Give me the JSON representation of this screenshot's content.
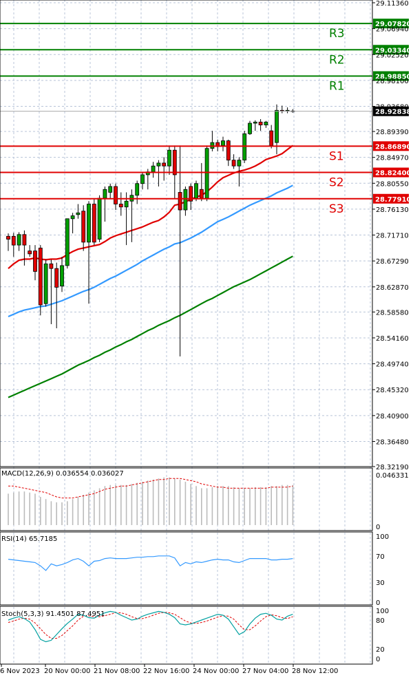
{
  "chart_data": {
    "type": "candlestick",
    "price_axis": {
      "ticks": [
        "29.11360",
        "29.06940",
        "29.02520",
        "28.98100",
        "28.93680",
        "28.89390",
        "28.84970",
        "28.80550",
        "28.76130",
        "28.71710",
        "28.67290",
        "28.62870",
        "28.58580",
        "28.54160",
        "28.49740",
        "28.45320",
        "28.40900",
        "28.36480",
        "28.32190"
      ],
      "ylim": [
        28.3219,
        29.1136
      ]
    },
    "time_axis": {
      "ticks": [
        "6 Nov 2023",
        "20 Nov 00:00",
        "21 Nov 08:00",
        "22 Nov 16:00",
        "24 Nov 00:00",
        "27 Nov 04:00",
        "28 Nov 12:00"
      ]
    },
    "levels": [
      {
        "name": "R3",
        "value": "29.07820",
        "color": "#008000"
      },
      {
        "name": "R2",
        "value": "29.03340",
        "color": "#008000"
      },
      {
        "name": "R1",
        "value": "28.98850",
        "color": "#008000"
      },
      {
        "name": "S1",
        "value": "28.86890",
        "color": "#e00000"
      },
      {
        "name": "S2",
        "value": "28.82400",
        "color": "#e00000"
      },
      {
        "name": "S3",
        "value": "28.77910",
        "color": "#e00000"
      }
    ],
    "current_price": {
      "value": "28.92838",
      "color": "#000000"
    },
    "colors": {
      "bull": "#00a000",
      "bear": "#e00000",
      "ma_fast": "#e00000",
      "ma_mid": "#3399ff",
      "ma_slow": "#008000"
    },
    "candles": [
      {
        "o": 28.715,
        "h": 28.72,
        "l": 28.69,
        "c": 28.71
      },
      {
        "o": 28.715,
        "h": 28.721,
        "l": 28.68,
        "c": 28.7
      },
      {
        "o": 28.7,
        "h": 28.722,
        "l": 28.69,
        "c": 28.718
      },
      {
        "o": 28.718,
        "h": 28.725,
        "l": 28.665,
        "c": 28.7
      },
      {
        "o": 28.69,
        "h": 28.7,
        "l": 28.68,
        "c": 28.685
      },
      {
        "o": 28.69,
        "h": 28.7,
        "l": 28.64,
        "c": 28.655
      },
      {
        "o": 28.695,
        "h": 28.7,
        "l": 28.58,
        "c": 28.598
      },
      {
        "o": 28.6,
        "h": 28.675,
        "l": 28.595,
        "c": 28.668
      },
      {
        "o": 28.668,
        "h": 28.675,
        "l": 28.565,
        "c": 28.66
      },
      {
        "o": 28.66,
        "h": 28.67,
        "l": 28.558,
        "c": 28.628
      },
      {
        "o": 28.63,
        "h": 28.68,
        "l": 28.62,
        "c": 28.665
      },
      {
        "o": 28.665,
        "h": 28.745,
        "l": 28.66,
        "c": 28.745
      },
      {
        "o": 28.745,
        "h": 28.755,
        "l": 28.72,
        "c": 28.75
      },
      {
        "o": 28.752,
        "h": 28.77,
        "l": 28.745,
        "c": 28.755
      },
      {
        "o": 28.758,
        "h": 28.768,
        "l": 28.69,
        "c": 28.705
      },
      {
        "o": 28.705,
        "h": 28.775,
        "l": 28.6,
        "c": 28.77
      },
      {
        "o": 28.77,
        "h": 28.78,
        "l": 28.7,
        "c": 28.705
      },
      {
        "o": 28.71,
        "h": 28.785,
        "l": 28.705,
        "c": 28.78
      },
      {
        "o": 28.78,
        "h": 28.8,
        "l": 28.74,
        "c": 28.795
      },
      {
        "o": 28.79,
        "h": 28.805,
        "l": 28.78,
        "c": 28.8
      },
      {
        "o": 28.8,
        "h": 28.805,
        "l": 28.76,
        "c": 28.77
      },
      {
        "o": 28.77,
        "h": 28.79,
        "l": 28.75,
        "c": 28.765
      },
      {
        "o": 28.765,
        "h": 28.79,
        "l": 28.7,
        "c": 28.775
      },
      {
        "o": 28.775,
        "h": 28.795,
        "l": 28.705,
        "c": 28.785
      },
      {
        "o": 28.785,
        "h": 28.81,
        "l": 28.77,
        "c": 28.805
      },
      {
        "o": 28.805,
        "h": 28.825,
        "l": 28.795,
        "c": 28.82
      },
      {
        "o": 28.82,
        "h": 28.83,
        "l": 28.795,
        "c": 28.825
      },
      {
        "o": 28.825,
        "h": 28.842,
        "l": 28.815,
        "c": 28.835
      },
      {
        "o": 28.835,
        "h": 28.845,
        "l": 28.8,
        "c": 28.84
      },
      {
        "o": 28.84,
        "h": 28.85,
        "l": 28.81,
        "c": 28.835
      },
      {
        "o": 28.835,
        "h": 28.87,
        "l": 28.82,
        "c": 28.862
      },
      {
        "o": 28.862,
        "h": 28.87,
        "l": 28.78,
        "c": 28.82
      },
      {
        "o": 28.79,
        "h": 28.87,
        "l": 28.51,
        "c": 28.76
      },
      {
        "o": 28.76,
        "h": 28.8,
        "l": 28.75,
        "c": 28.795
      },
      {
        "o": 28.8,
        "h": 28.805,
        "l": 28.76,
        "c": 28.775
      },
      {
        "o": 28.78,
        "h": 28.81,
        "l": 28.775,
        "c": 28.805
      },
      {
        "o": 28.795,
        "h": 28.84,
        "l": 28.775,
        "c": 28.78
      },
      {
        "o": 28.78,
        "h": 28.87,
        "l": 28.775,
        "c": 28.865
      },
      {
        "o": 28.865,
        "h": 28.895,
        "l": 28.86,
        "c": 28.875
      },
      {
        "o": 28.875,
        "h": 28.88,
        "l": 28.86,
        "c": 28.868
      },
      {
        "o": 28.87,
        "h": 28.885,
        "l": 28.86,
        "c": 28.878
      },
      {
        "o": 28.878,
        "h": 28.88,
        "l": 28.835,
        "c": 28.845
      },
      {
        "o": 28.845,
        "h": 28.855,
        "l": 28.83,
        "c": 28.835
      },
      {
        "o": 28.835,
        "h": 28.85,
        "l": 28.8,
        "c": 28.845
      },
      {
        "o": 28.845,
        "h": 28.895,
        "l": 28.84,
        "c": 28.89
      },
      {
        "o": 28.89,
        "h": 28.912,
        "l": 28.888,
        "c": 28.908
      },
      {
        "o": 28.908,
        "h": 28.913,
        "l": 28.895,
        "c": 28.91
      },
      {
        "o": 28.91,
        "h": 28.915,
        "l": 28.895,
        "c": 28.905
      },
      {
        "o": 28.905,
        "h": 28.912,
        "l": 28.9,
        "c": 28.91
      },
      {
        "o": 28.895,
        "h": 28.905,
        "l": 28.865,
        "c": 28.87
      },
      {
        "o": 28.875,
        "h": 28.94,
        "l": 28.855,
        "c": 28.93
      },
      {
        "o": 28.93,
        "h": 28.938,
        "l": 28.925,
        "c": 28.929
      },
      {
        "o": 28.929,
        "h": 28.935,
        "l": 28.925,
        "c": 28.93
      },
      {
        "o": 28.929,
        "h": 28.932,
        "l": 28.926,
        "c": 28.928
      }
    ],
    "ma_fast": [
      28.66,
      28.668,
      28.674,
      28.676,
      28.676,
      28.678,
      28.676,
      28.675,
      28.676,
      28.676,
      28.678,
      28.684,
      28.689,
      28.693,
      28.695,
      28.697,
      28.699,
      28.701,
      28.706,
      28.712,
      28.716,
      28.719,
      28.722,
      28.725,
      28.728,
      28.731,
      28.735,
      28.739,
      28.742,
      28.748,
      28.756,
      28.768,
      28.77,
      28.774,
      28.778,
      28.782,
      28.785,
      28.791,
      28.799,
      28.808,
      28.815,
      28.819,
      28.823,
      28.826,
      28.828,
      28.831,
      28.835,
      28.84,
      28.846,
      28.849,
      28.852,
      28.856,
      28.863,
      28.87
    ],
    "ma_mid": [
      28.578,
      28.582,
      28.586,
      28.589,
      28.591,
      28.593,
      28.595,
      28.596,
      28.599,
      28.602,
      28.605,
      28.609,
      28.613,
      28.617,
      28.621,
      28.624,
      28.628,
      28.633,
      28.638,
      28.643,
      28.647,
      28.652,
      28.657,
      28.662,
      28.667,
      28.673,
      28.678,
      28.683,
      28.688,
      28.693,
      28.697,
      28.702,
      28.704,
      28.708,
      28.712,
      28.717,
      28.722,
      28.728,
      28.734,
      28.74,
      28.744,
      28.748,
      28.753,
      28.758,
      28.763,
      28.768,
      28.772,
      28.776,
      28.78,
      28.784,
      28.789,
      28.793,
      28.797,
      28.802
    ],
    "ma_slow": [
      28.44,
      28.444,
      28.448,
      28.452,
      28.456,
      28.46,
      28.464,
      28.468,
      28.472,
      28.476,
      28.48,
      28.485,
      28.49,
      28.495,
      28.499,
      28.503,
      28.508,
      28.512,
      28.517,
      28.521,
      28.526,
      28.53,
      28.535,
      28.539,
      28.544,
      28.549,
      28.554,
      28.558,
      28.563,
      28.567,
      28.571,
      28.576,
      28.58,
      28.585,
      28.59,
      28.595,
      28.6,
      28.605,
      28.609,
      28.614,
      28.619,
      28.624,
      28.629,
      28.633,
      28.637,
      28.641,
      28.646,
      28.651,
      28.656,
      28.661,
      28.666,
      28.671,
      28.676,
      28.681
    ],
    "macd": {
      "label": "MACD(12,26,9) 0.036554 0.036027",
      "ticks": [
        "0.046331",
        "0"
      ],
      "ylim": [
        0,
        0.046331
      ],
      "hist": [
        0.029,
        0.03,
        0.031,
        0.031,
        0.03,
        0.029,
        0.026,
        0.024,
        0.022,
        0.021,
        0.021,
        0.022,
        0.024,
        0.026,
        0.028,
        0.03,
        0.032,
        0.034,
        0.036,
        0.037,
        0.037,
        0.037,
        0.037,
        0.038,
        0.039,
        0.04,
        0.041,
        0.042,
        0.043,
        0.044,
        0.044,
        0.043,
        0.042,
        0.04,
        0.038,
        0.036,
        0.034,
        0.034,
        0.035,
        0.036,
        0.036,
        0.036,
        0.035,
        0.034,
        0.034,
        0.034,
        0.035,
        0.035,
        0.035,
        0.036,
        0.036,
        0.037,
        0.037,
        0.037
      ],
      "signal": [
        0.036,
        0.036,
        0.035,
        0.034,
        0.033,
        0.032,
        0.031,
        0.03,
        0.028,
        0.026,
        0.025,
        0.025,
        0.025,
        0.026,
        0.027,
        0.028,
        0.029,
        0.031,
        0.033,
        0.034,
        0.035,
        0.036,
        0.036,
        0.037,
        0.038,
        0.039,
        0.04,
        0.041,
        0.042,
        0.042,
        0.043,
        0.043,
        0.043,
        0.042,
        0.041,
        0.04,
        0.038,
        0.037,
        0.036,
        0.035,
        0.035,
        0.034,
        0.034,
        0.034,
        0.034,
        0.034,
        0.034,
        0.034,
        0.034,
        0.035,
        0.035,
        0.035,
        0.035,
        0.036
      ]
    },
    "rsi": {
      "label": "RSI(14) 65.7185",
      "ticks": [
        "100",
        "70",
        "30",
        "0"
      ],
      "ylim": [
        0,
        100
      ],
      "values": [
        65,
        64,
        63,
        62,
        61,
        60,
        55,
        48,
        58,
        55,
        57,
        60,
        64,
        66,
        62,
        55,
        62,
        63,
        66,
        67,
        66,
        66,
        66,
        67,
        68,
        68,
        69,
        69,
        70,
        70,
        70,
        67,
        55,
        60,
        58,
        61,
        60,
        62,
        64,
        65,
        64,
        64,
        61,
        60,
        63,
        66,
        66,
        66,
        66,
        64,
        64,
        65,
        65,
        66
      ]
    },
    "stoch": {
      "label": "Stoch(5,3,3) 91.4501 87.4951",
      "ticks": [
        "100",
        "80",
        "20",
        "0"
      ],
      "ylim": [
        0,
        100
      ],
      "k": [
        80,
        84,
        87,
        83,
        76,
        60,
        40,
        35,
        38,
        50,
        62,
        73,
        82,
        92,
        90,
        85,
        84,
        90,
        95,
        98,
        96,
        90,
        85,
        80,
        82,
        88,
        92,
        95,
        98,
        96,
        92,
        85,
        72,
        70,
        72,
        76,
        80,
        84,
        88,
        92,
        90,
        82,
        66,
        50,
        56,
        72,
        84,
        92,
        94,
        90,
        82,
        80,
        88,
        92
      ],
      "d": [
        75,
        78,
        82,
        84,
        82,
        74,
        62,
        50,
        42,
        42,
        48,
        58,
        68,
        80,
        88,
        89,
        87,
        87,
        89,
        92,
        95,
        95,
        92,
        87,
        83,
        83,
        86,
        90,
        94,
        96,
        95,
        92,
        85,
        78,
        74,
        73,
        75,
        78,
        82,
        86,
        89,
        88,
        82,
        70,
        60,
        60,
        68,
        78,
        87,
        91,
        89,
        85,
        83,
        87
      ]
    }
  }
}
